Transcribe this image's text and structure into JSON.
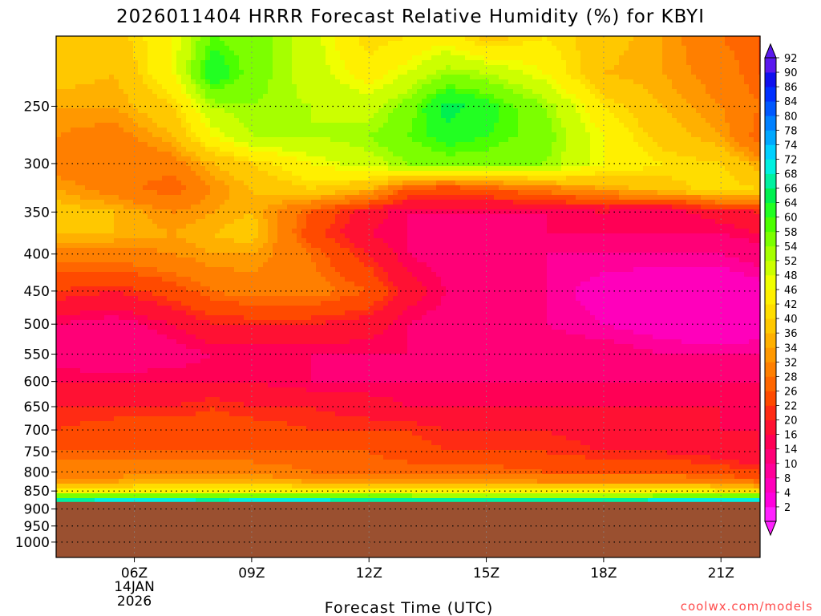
{
  "chart_data": {
    "type": "heatmap",
    "title": "2026011404 HRRR Forecast Relative Humidity (%) for KBYI",
    "xlabel": "Forecast Time (UTC)",
    "ylabel": "",
    "credit": "coolwx.com/models",
    "x_ticks": [
      "06Z",
      "09Z",
      "12Z",
      "15Z",
      "18Z",
      "21Z"
    ],
    "x_tick_hours": [
      6,
      9,
      12,
      15,
      18,
      21
    ],
    "x_date_lines": [
      "14JAN",
      "2026"
    ],
    "xlim": [
      4.0,
      22.0
    ],
    "y_ticks": [
      250,
      300,
      350,
      400,
      450,
      500,
      550,
      600,
      650,
      700,
      750,
      800,
      850,
      900,
      950,
      1000
    ],
    "ylim": [
      1050,
      200
    ],
    "y_scale": "log-pressure",
    "grid": true,
    "ground_pressure_hpa": 880,
    "colorbar_levels": [
      2,
      4,
      8,
      10,
      14,
      16,
      20,
      22,
      26,
      28,
      32,
      34,
      36,
      40,
      42,
      46,
      48,
      52,
      54,
      58,
      60,
      64,
      66,
      68,
      72,
      74,
      78,
      80,
      84,
      86,
      90,
      92
    ],
    "colorbar_colors": [
      "#ff22ff",
      "#ff00dd",
      "#ff00bb",
      "#ff0099",
      "#ff0077",
      "#ff0055",
      "#ff1133",
      "#ff2b14",
      "#ff4a00",
      "#ff6600",
      "#ff7f00",
      "#ff9800",
      "#ffb000",
      "#ffc800",
      "#ffdd00",
      "#fff000",
      "#f0ff00",
      "#ccff00",
      "#a6ff00",
      "#7cff00",
      "#4cff00",
      "#22ff22",
      "#00f050",
      "#00f0a0",
      "#00f0e0",
      "#00d0ff",
      "#00a8ff",
      "#0080ff",
      "#0058ff",
      "#0030ff",
      "#1010ee",
      "#5a18ee"
    ],
    "ground_color": "#9a5030",
    "rh_grid": {
      "x_hours": [
        4.0,
        5.5,
        7.0,
        8.0,
        9.0,
        10.5,
        12.0,
        13.0,
        14.0,
        15.0,
        16.5,
        18.0,
        19.5,
        21.0,
        22.0
      ],
      "pressure_levels": [
        200,
        225,
        250,
        275,
        300,
        325,
        350,
        375,
        400,
        450,
        500,
        550,
        600,
        650,
        700,
        750,
        800,
        825,
        850,
        870,
        880
      ],
      "values": [
        [
          40,
          38,
          46,
          58,
          56,
          50,
          40,
          42,
          44,
          38,
          42,
          38,
          34,
          28,
          26
        ],
        [
          38,
          36,
          46,
          64,
          56,
          50,
          44,
          48,
          54,
          52,
          46,
          36,
          34,
          30,
          26
        ],
        [
          34,
          34,
          40,
          52,
          54,
          52,
          50,
          56,
          66,
          62,
          54,
          42,
          36,
          32,
          28
        ],
        [
          32,
          30,
          36,
          46,
          52,
          52,
          54,
          58,
          62,
          60,
          56,
          46,
          38,
          34,
          26
        ],
        [
          30,
          28,
          30,
          36,
          40,
          46,
          50,
          54,
          56,
          56,
          54,
          46,
          42,
          40,
          34
        ],
        [
          34,
          30,
          26,
          32,
          36,
          40,
          36,
          26,
          24,
          26,
          30,
          34,
          38,
          42,
          40
        ],
        [
          38,
          36,
          32,
          34,
          36,
          26,
          18,
          14,
          14,
          14,
          14,
          16,
          14,
          18,
          20
        ],
        [
          36,
          36,
          34,
          36,
          38,
          24,
          16,
          14,
          14,
          12,
          14,
          14,
          14,
          14,
          16
        ],
        [
          30,
          30,
          32,
          34,
          34,
          28,
          20,
          14,
          12,
          12,
          10,
          10,
          10,
          10,
          12
        ],
        [
          22,
          20,
          24,
          28,
          30,
          30,
          26,
          18,
          14,
          12,
          10,
          6,
          4,
          4,
          6
        ],
        [
          14,
          12,
          16,
          20,
          20,
          20,
          18,
          14,
          12,
          10,
          10,
          8,
          6,
          4,
          6
        ],
        [
          12,
          10,
          12,
          14,
          14,
          14,
          14,
          14,
          12,
          12,
          12,
          12,
          10,
          10,
          10
        ],
        [
          16,
          16,
          16,
          16,
          16,
          14,
          14,
          14,
          14,
          14,
          14,
          14,
          14,
          14,
          14
        ],
        [
          20,
          20,
          20,
          22,
          20,
          20,
          18,
          16,
          16,
          16,
          16,
          16,
          16,
          16,
          16
        ],
        [
          22,
          24,
          24,
          24,
          24,
          22,
          22,
          22,
          20,
          20,
          20,
          18,
          18,
          16,
          16
        ],
        [
          26,
          26,
          26,
          26,
          26,
          26,
          26,
          24,
          22,
          22,
          22,
          20,
          20,
          18,
          16
        ],
        [
          30,
          30,
          30,
          30,
          30,
          28,
          28,
          28,
          28,
          28,
          26,
          26,
          26,
          24,
          22
        ],
        [
          34,
          34,
          36,
          36,
          36,
          34,
          34,
          34,
          34,
          34,
          32,
          32,
          32,
          30,
          28
        ],
        [
          46,
          46,
          46,
          46,
          46,
          46,
          46,
          44,
          44,
          44,
          44,
          44,
          44,
          42,
          40
        ],
        [
          60,
          60,
          62,
          60,
          62,
          60,
          60,
          60,
          58,
          58,
          58,
          58,
          60,
          62,
          62
        ],
        [
          72,
          74,
          74,
          72,
          74,
          74,
          72,
          72,
          72,
          72,
          72,
          72,
          74,
          74,
          74
        ]
      ]
    }
  }
}
